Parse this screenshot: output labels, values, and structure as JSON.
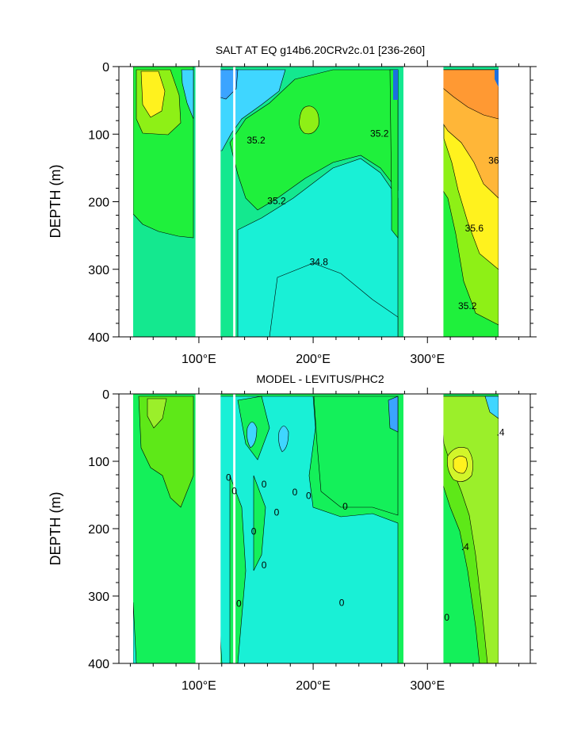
{
  "chart_data": [
    {
      "type": "heatmap",
      "title": "SALT AT EQ g14b6.20CRv2c.01 [236-260]",
      "ylabel": "DEPTH (m)",
      "xlabel": "",
      "xlim": [
        30,
        390
      ],
      "ylim": [
        400,
        0
      ],
      "x_ticks": [
        {
          "value": 100,
          "label": "100°E"
        },
        {
          "value": 200,
          "label": "200°E"
        },
        {
          "value": 300,
          "label": "300°E"
        }
      ],
      "y_ticks": [
        {
          "value": 0,
          "label": "0"
        },
        {
          "value": 100,
          "label": "100"
        },
        {
          "value": 200,
          "label": "200"
        },
        {
          "value": 300,
          "label": "300"
        },
        {
          "value": 400,
          "label": "400"
        }
      ],
      "land_gaps_lon": [
        [
          97,
          119
        ],
        [
          130,
          132
        ],
        [
          279,
          314
        ]
      ],
      "data_extent_lon": [
        44,
        370
      ],
      "contour_labels": [
        {
          "text": "35.2",
          "lon": 150,
          "depth": 110
        },
        {
          "text": "35.2",
          "lon": 258,
          "depth": 100
        },
        {
          "text": "35.2",
          "lon": 168,
          "depth": 200
        },
        {
          "text": "34.8",
          "lon": 205,
          "depth": 290
        },
        {
          "text": "36",
          "lon": 358,
          "depth": 140
        },
        {
          "text": "35.6",
          "lon": 341,
          "depth": 240
        },
        {
          "text": "35.2",
          "lon": 335,
          "depth": 355
        }
      ],
      "color_scale": {
        "33.6": "#1c6fe0",
        "34.0": "#3ba4ff",
        "34.4": "#3fd6ff",
        "34.8": "#19f0d6",
        "35.0": "#14e88f",
        "35.2": "#1ff03c",
        "35.4": "#8ef016",
        "35.6": "#fff21e",
        "35.8": "#ffb638",
        "36.0": "#ff9933"
      }
    },
    {
      "type": "heatmap",
      "title": "MODEL - LEVITUS/PHC2",
      "ylabel": "DEPTH (m)",
      "xlabel": "",
      "xlim": [
        30,
        390
      ],
      "ylim": [
        400,
        0
      ],
      "x_ticks": [
        {
          "value": 100,
          "label": "100°E"
        },
        {
          "value": 200,
          "label": "200°E"
        },
        {
          "value": 300,
          "label": "300°E"
        }
      ],
      "y_ticks": [
        {
          "value": 0,
          "label": "0"
        },
        {
          "value": 100,
          "label": "100"
        },
        {
          "value": 200,
          "label": "200"
        },
        {
          "value": 300,
          "label": "300"
        },
        {
          "value": 400,
          "label": "400"
        }
      ],
      "land_gaps_lon": [
        [
          97,
          119
        ],
        [
          130,
          132
        ],
        [
          279,
          314
        ]
      ],
      "data_extent_lon": [
        44,
        370
      ],
      "contour_labels": [
        {
          "text": "0",
          "lon": 126,
          "depth": 125
        },
        {
          "text": "0",
          "lon": 131,
          "depth": 145
        },
        {
          "text": "0",
          "lon": 157,
          "depth": 135
        },
        {
          "text": "0",
          "lon": 184,
          "depth": 147
        },
        {
          "text": "0",
          "lon": 196,
          "depth": 152
        },
        {
          "text": "0",
          "lon": 168,
          "depth": 177
        },
        {
          "text": "0",
          "lon": 228,
          "depth": 168
        },
        {
          "text": "0",
          "lon": 148,
          "depth": 205
        },
        {
          "text": "0",
          "lon": 157,
          "depth": 255
        },
        {
          "text": "0",
          "lon": 135,
          "depth": 312
        },
        {
          "text": "0",
          "lon": 225,
          "depth": 311
        },
        {
          "text": "0",
          "lon": 317,
          "depth": 333
        },
        {
          "text": ".4",
          "lon": 364,
          "depth": 58
        },
        {
          "text": ".4",
          "lon": 333,
          "depth": 228
        }
      ],
      "color_scale": {
        "-0.8": "#1c6fe0",
        "-0.4": "#3fd6ff",
        "-0.2": "#19f0d6",
        "0.0": "#14f05a",
        "0.2": "#5ee818",
        "0.4": "#9bef2a",
        "0.6": "#d2f52a",
        "0.8": "#fff21e"
      }
    }
  ]
}
